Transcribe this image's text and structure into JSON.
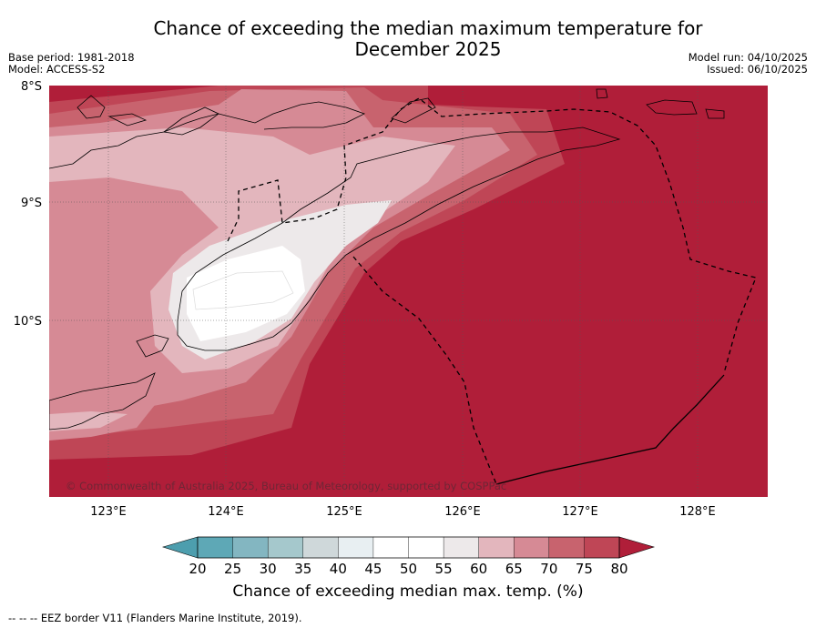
{
  "header": {
    "title_line1": "Chance of exceeding the median maximum temperature for",
    "title_line2": "December 2025",
    "base_period": "Base period: 1981-2018",
    "model": "Model: ACCESS-S2",
    "model_run": "Model run: 04/10/2025",
    "issued": "Issued: 06/10/2025"
  },
  "map": {
    "lat_labels": [
      "8°S",
      "9°S",
      "10°S"
    ],
    "lon_labels": [
      "123°E",
      "124°E",
      "125°E",
      "126°E",
      "127°E",
      "128°E"
    ],
    "copyright": "© Commonwealth of Australia 2025, Bureau of Meteorology, supported by COSPPac"
  },
  "colorbar": {
    "ticks": [
      "20",
      "25",
      "30",
      "35",
      "40",
      "45",
      "50",
      "55",
      "60",
      "65",
      "70",
      "75",
      "80"
    ],
    "colors": [
      "#5ea8b6",
      "#83b6c1",
      "#a5c8cc",
      "#cfd8da",
      "#e8eff2",
      "#ffffff",
      "#ffffff",
      "#ede9ea",
      "#e3b6bd",
      "#d68a95",
      "#c8636e",
      "#bf4656"
    ],
    "under_color": "#4d9eae",
    "over_color": "#b01e39",
    "label": "Chance of exceeding median max. temp. (%)"
  },
  "footnote": "--  --  -- EEZ border V11 (Flanders Marine Institute, 2019).",
  "palette": {
    "p80": "#b01e39",
    "p75": "#bf4656",
    "p70": "#c8636e",
    "p65": "#d68a95",
    "p60": "#e3b6bd",
    "p55": "#ede9ea",
    "p50": "#ffffff"
  }
}
